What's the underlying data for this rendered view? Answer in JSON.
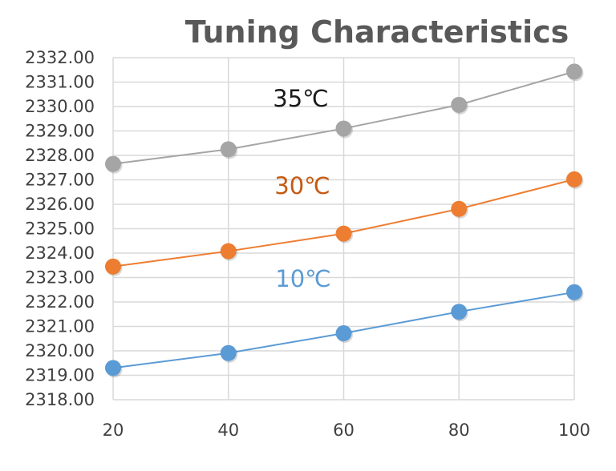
{
  "chart_data": {
    "type": "line",
    "title": "Tuning Characteristics",
    "xlabel": "",
    "ylabel": "",
    "x": [
      20,
      40,
      60,
      80,
      100
    ],
    "x_ticks": [
      "20",
      "40",
      "60",
      "80",
      "100"
    ],
    "ylim": [
      2318,
      2332
    ],
    "y_ticks": [
      "2318.00",
      "2319.00",
      "2320.00",
      "2321.00",
      "2322.00",
      "2323.00",
      "2324.00",
      "2325.00",
      "2326.00",
      "2327.00",
      "2328.00",
      "2329.00",
      "2330.00",
      "2331.00",
      "2332.00"
    ],
    "grid": true,
    "series": [
      {
        "name": "35℃",
        "color": "#A5A5A5",
        "label_color": "#1a1a1a",
        "values": [
          2327.65,
          2328.25,
          2329.1,
          2330.07,
          2331.43
        ]
      },
      {
        "name": "30℃",
        "color": "#ED7D31",
        "label_color": "#C55A11",
        "values": [
          2323.45,
          2324.08,
          2324.8,
          2325.81,
          2327.02
        ]
      },
      {
        "name": "10℃",
        "color": "#5B9BD5",
        "label_color": "#5B9BD5",
        "values": [
          2319.3,
          2319.91,
          2320.72,
          2321.6,
          2322.4
        ]
      }
    ]
  }
}
